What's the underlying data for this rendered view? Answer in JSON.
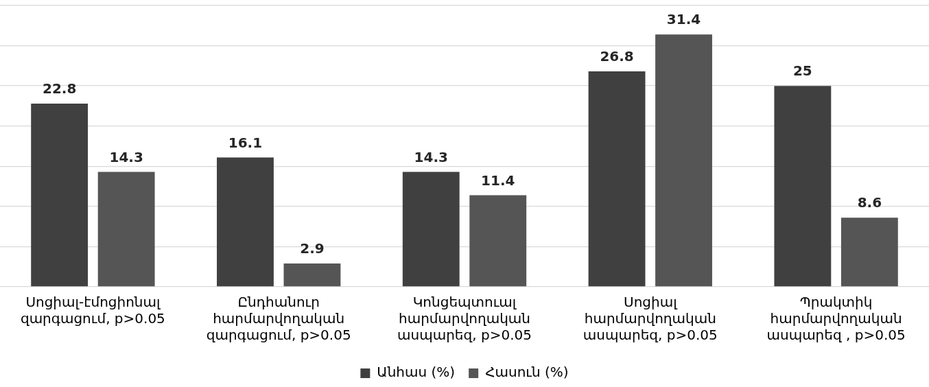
{
  "chart_data": {
    "type": "bar",
    "categories": [
      "Սոցիալ-էմոցիոնալ\nզարգացում, p>0.05",
      "Ընդհանուր\nհարմարվողական\nզարգացում, p>0.05",
      "Կոնցեպտուալ\nհարմարվողական\nասպարեզ, p>0.05",
      "Սոցիալ\nհարմարվողական\nասպարեզ, p>0.05",
      "Պրակտիկ\nհարմարվողական\nասպարեզ , p>0.05"
    ],
    "series": [
      {
        "name": "Անհաս (%)",
        "color": "#404040",
        "values": [
          22.8,
          16.1,
          14.3,
          26.8,
          25
        ]
      },
      {
        "name": "Հասուն (%)",
        "color": "#555555",
        "values": [
          14.3,
          2.9,
          11.4,
          31.4,
          8.6
        ]
      }
    ],
    "ylim": [
      0,
      35
    ],
    "yticks": [
      {
        "value": 0,
        "label": null
      },
      {
        "value": 5,
        "label": null
      },
      {
        "value": 10,
        "label": null
      },
      {
        "value": 15,
        "label": null
      },
      {
        "value": 20,
        "label": null
      },
      {
        "value": 25,
        "label": null
      },
      {
        "value": 30,
        "label": null
      },
      {
        "value": 35,
        "label": null
      }
    ],
    "tick_labels": "x",
    "grid": "y",
    "legend": "bottom",
    "data_labels": true
  }
}
